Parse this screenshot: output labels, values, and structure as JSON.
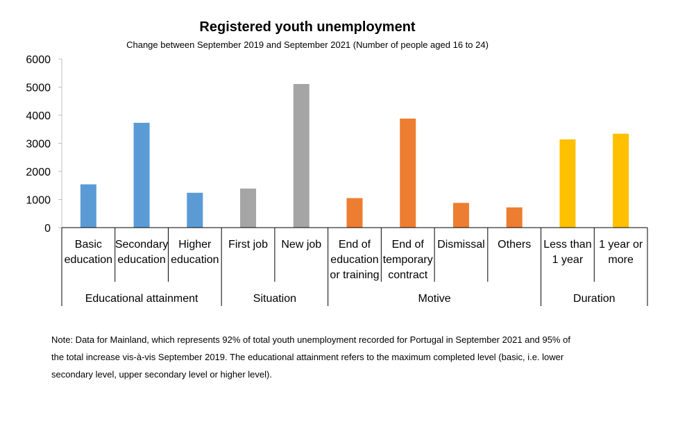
{
  "chart_data": {
    "type": "bar",
    "title": "Registered youth unemployment",
    "subtitle": "Change between September 2019 and September 2021 (Number of people aged 16 to 24)",
    "ylim": [
      0,
      6000
    ],
    "yticks": [
      0,
      1000,
      2000,
      3000,
      4000,
      5000,
      6000
    ],
    "grid": false,
    "categories": [
      {
        "label_lines": [
          "Basic",
          "education"
        ],
        "value": 1540,
        "color": "#5b9bd5"
      },
      {
        "label_lines": [
          "Secondary",
          "education"
        ],
        "value": 3730,
        "color": "#5b9bd5"
      },
      {
        "label_lines": [
          "Higher",
          "education"
        ],
        "value": 1240,
        "color": "#5b9bd5"
      },
      {
        "label_lines": [
          "First job"
        ],
        "value": 1390,
        "color": "#a5a5a5"
      },
      {
        "label_lines": [
          "New job"
        ],
        "value": 5110,
        "color": "#a5a5a5"
      },
      {
        "label_lines": [
          "End of",
          "education",
          "or training"
        ],
        "value": 1050,
        "color": "#ed7d31"
      },
      {
        "label_lines": [
          "End of",
          "temporary",
          "contract"
        ],
        "value": 3880,
        "color": "#ed7d31"
      },
      {
        "label_lines": [
          "Dismissal"
        ],
        "value": 880,
        "color": "#ed7d31"
      },
      {
        "label_lines": [
          "Others"
        ],
        "value": 720,
        "color": "#ed7d31"
      },
      {
        "label_lines": [
          "Less than",
          "1 year"
        ],
        "value": 3140,
        "color": "#ffc000"
      },
      {
        "label_lines": [
          "1 year or",
          "more"
        ],
        "value": 3340,
        "color": "#ffc000"
      }
    ],
    "groups": [
      {
        "label": "Educational attainment",
        "count": 3
      },
      {
        "label": "Situation",
        "count": 2
      },
      {
        "label": "Motive",
        "count": 4
      },
      {
        "label": "Duration",
        "count": 2
      }
    ]
  },
  "note": "Note: Data for Mainland, which represents 92% of total youth unemployment recorded for Portugal in September 2021 and 95% of the total increase vis-à-vis September 2019. The educational attainment refers to the maximum completed level (basic, i.e. lower secondary level, upper secondary level or higher level)."
}
